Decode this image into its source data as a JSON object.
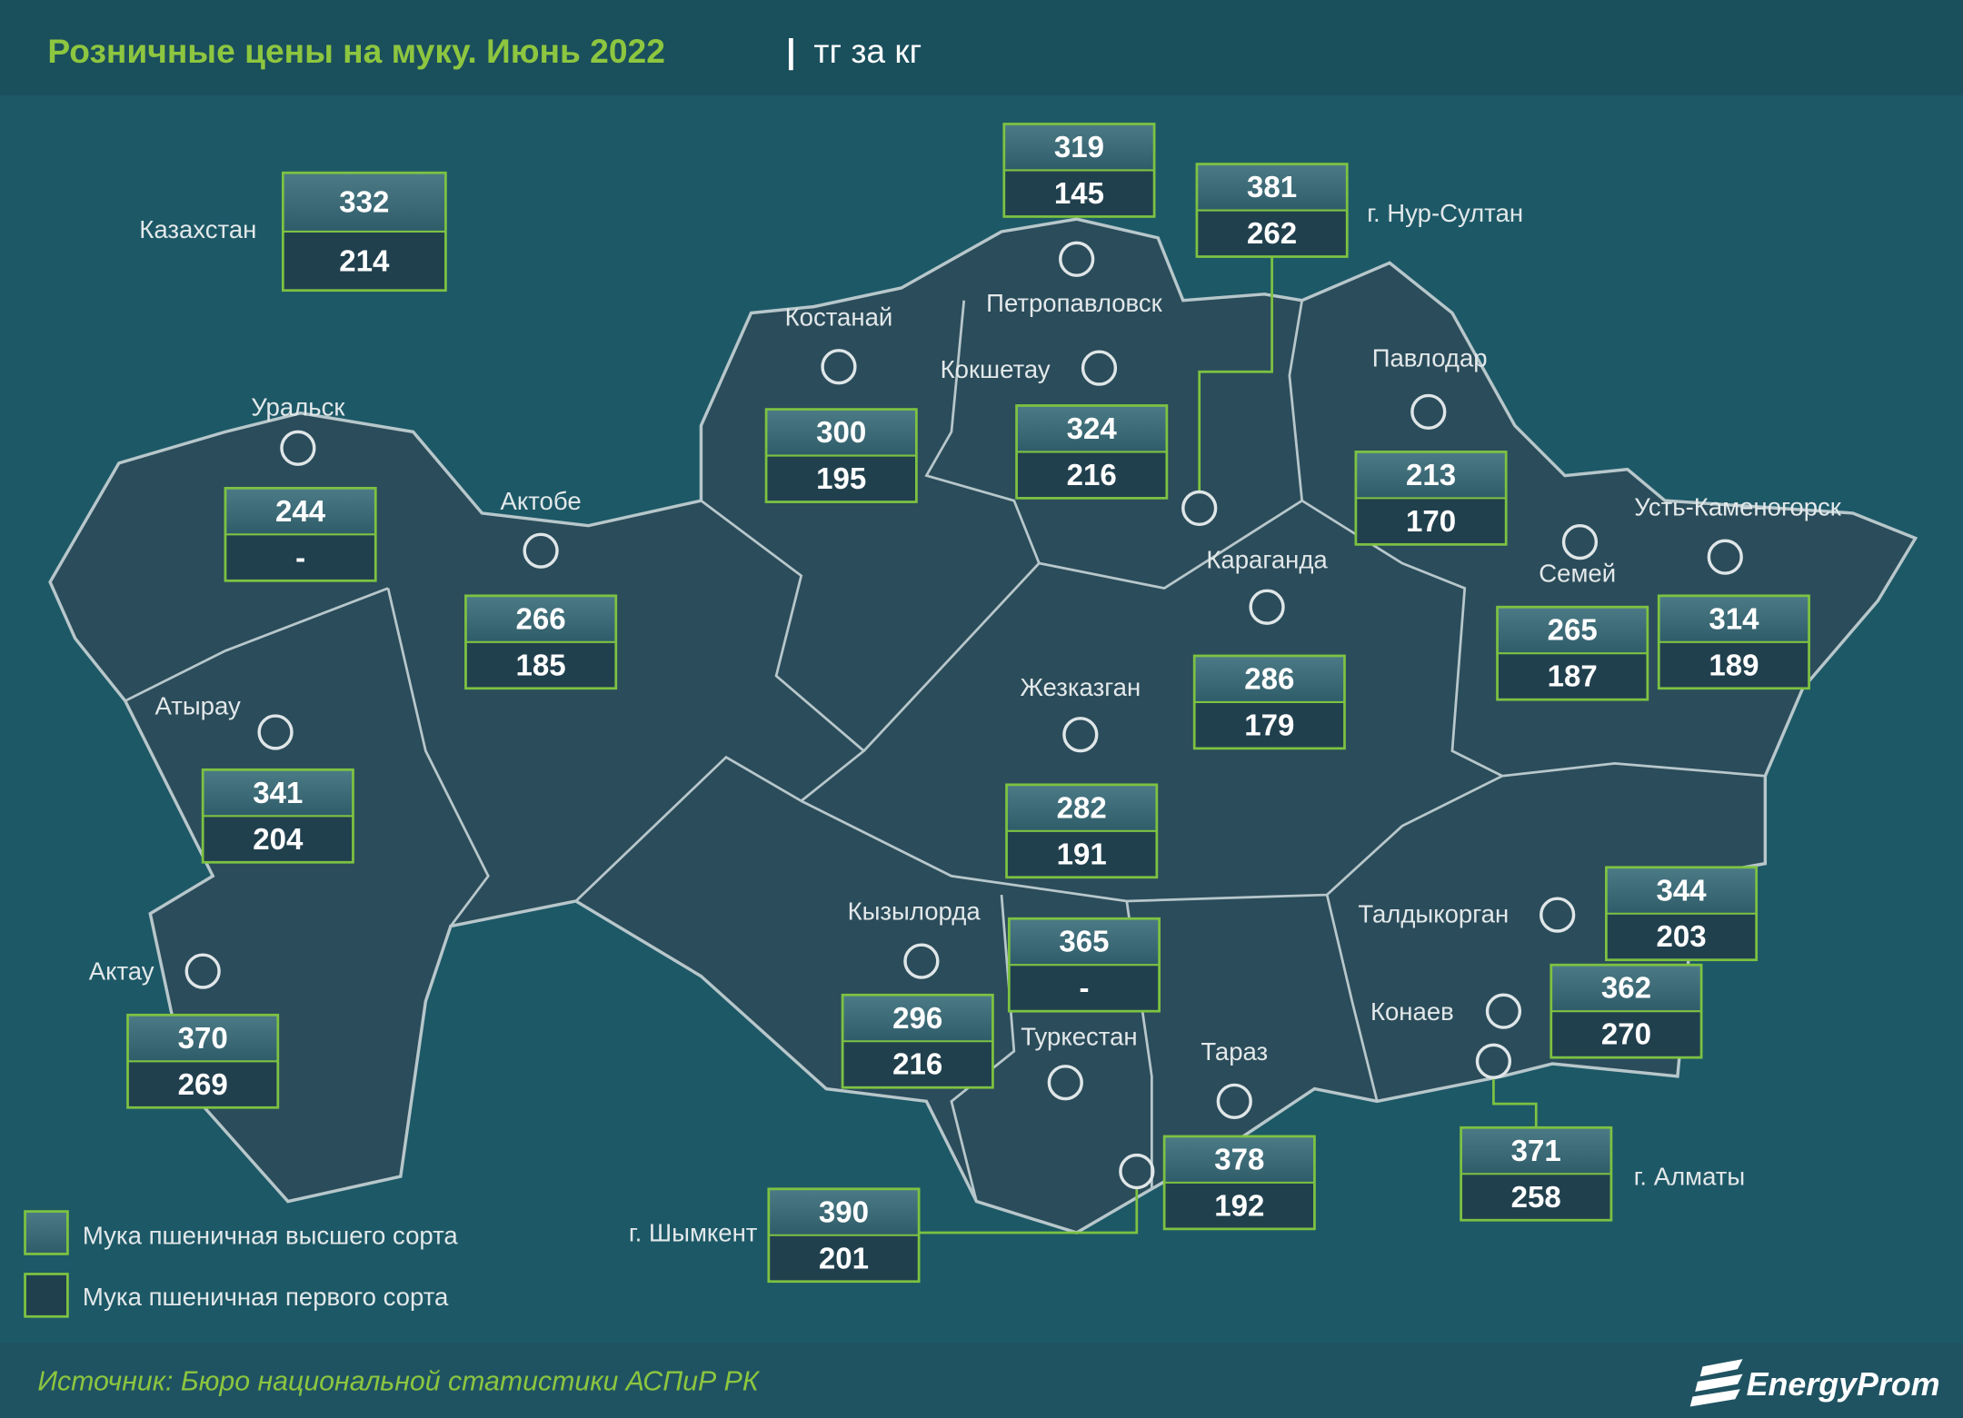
{
  "header": {
    "title": "Розничные цены на муку. Июнь 2022",
    "unit": "тг за кг"
  },
  "regions": [
    {
      "name": "Казахстан",
      "premium": 332,
      "first": 214
    },
    {
      "name": "Петропавловск",
      "premium": 319,
      "first": 145
    },
    {
      "name": "г. Нур-Султан",
      "premium": 381,
      "first": 262
    },
    {
      "name": "Костанай",
      "premium": 300,
      "first": 195
    },
    {
      "name": "Кокшетау",
      "premium": 324,
      "first": 216
    },
    {
      "name": "Павлодар",
      "premium": 213,
      "first": 170
    },
    {
      "name": "Уральск",
      "premium": 244,
      "first": "-"
    },
    {
      "name": "Актобе",
      "premium": 266,
      "first": 185
    },
    {
      "name": "Караганда",
      "premium": 286,
      "first": 179
    },
    {
      "name": "Семей",
      "premium": 265,
      "first": 187
    },
    {
      "name": "Усть-Каменогорск",
      "premium": 314,
      "first": 189
    },
    {
      "name": "Жезказган",
      "premium": 282,
      "first": 191
    },
    {
      "name": "Атырау",
      "premium": 341,
      "first": 204
    },
    {
      "name": "Кызылорда",
      "premium": 296,
      "first": 216
    },
    {
      "name": "Туркестан",
      "premium": 365,
      "first": "-"
    },
    {
      "name": "Тараз",
      "premium": 378,
      "first": 192
    },
    {
      "name": "Талдыкорган",
      "premium": 344,
      "first": 203
    },
    {
      "name": "Конаев",
      "premium": 362,
      "first": 270
    },
    {
      "name": "г. Алматы",
      "premium": 371,
      "first": 258
    },
    {
      "name": "г. Шымкент",
      "premium": 390,
      "first": 201
    },
    {
      "name": "Актау",
      "premium": 370,
      "first": 269
    }
  ],
  "legend": [
    "Мука пшеничная высшего сорта",
    "Мука пшеничная первого сорта"
  ],
  "source": "Источник: Бюро национальной статистики АСПиР РК",
  "logo": "EnergyProm"
}
